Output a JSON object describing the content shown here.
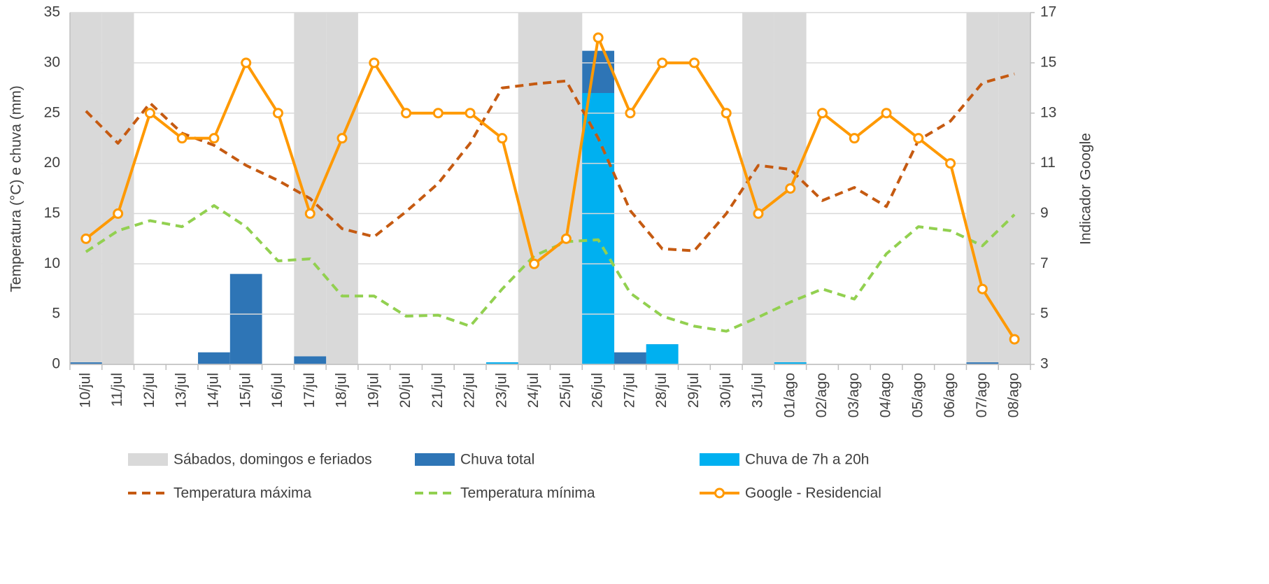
{
  "chart_data": {
    "type": "combo",
    "y_label": "Temperatura (°C) e chuva (mm)",
    "y2_label": "Indicador Google",
    "categories": [
      "10/jul",
      "11/jul",
      "12/jul",
      "13/jul",
      "14/jul",
      "15/jul",
      "16/jul",
      "17/jul",
      "18/jul",
      "19/jul",
      "20/jul",
      "21/jul",
      "22/jul",
      "23/jul",
      "24/jul",
      "25/jul",
      "26/jul",
      "27/jul",
      "28/jul",
      "29/jul",
      "30/jul",
      "31/jul",
      "01/ago",
      "02/ago",
      "03/ago",
      "04/ago",
      "05/ago",
      "06/ago",
      "07/ago",
      "08/ago"
    ],
    "ylim": [
      0,
      35
    ],
    "yticks": [
      0,
      5,
      10,
      15,
      20,
      25,
      30,
      35
    ],
    "y2lim": [
      3,
      17
    ],
    "y2ticks": [
      3,
      5,
      7,
      9,
      11,
      13,
      15,
      17
    ],
    "grid": true,
    "series": [
      {
        "name": "Sábados, domingos e feriados",
        "type": "bar",
        "color": "#d9d9d9",
        "values": [
          35,
          35,
          0,
          0,
          0,
          0,
          0,
          35,
          35,
          0,
          0,
          0,
          0,
          0,
          35,
          35,
          0,
          0,
          0,
          0,
          0,
          35,
          35,
          0,
          0,
          0,
          0,
          0,
          35,
          35
        ]
      },
      {
        "name": "Chuva total",
        "type": "bar",
        "color": "#2e75b6",
        "values": [
          0.2,
          0,
          0,
          0,
          1.2,
          9,
          0,
          0.8,
          0,
          0,
          0,
          0,
          0,
          0.2,
          0,
          0,
          31.2,
          1.2,
          2,
          0,
          0,
          0,
          0.2,
          0,
          0,
          0,
          0,
          0,
          0.2,
          0
        ]
      },
      {
        "name": "Chuva de 7h a 20h",
        "type": "bar",
        "color": "#00b0f0",
        "values": [
          0,
          0,
          0,
          0,
          0,
          0,
          0,
          0,
          0,
          0,
          0,
          0,
          0,
          0.2,
          0,
          0,
          27,
          0,
          2,
          0,
          0,
          0,
          0.2,
          0,
          0,
          0,
          0,
          0,
          0,
          0
        ]
      },
      {
        "name": "Temperatura máxima",
        "type": "line",
        "dashed": true,
        "color": "#c55a11",
        "values": [
          25.2,
          22,
          26,
          23,
          21.8,
          19.8,
          18.3,
          16.5,
          13.5,
          12.7,
          15.2,
          18,
          22,
          27.5,
          27.9,
          28.2,
          22.5,
          15.3,
          11.5,
          11.3,
          15,
          19.8,
          19.4,
          16.3,
          17.6,
          15.7,
          22.3,
          24.2,
          28,
          28.9
        ]
      },
      {
        "name": "Temperatura mínima",
        "type": "line",
        "dashed": true,
        "color": "#92d050",
        "values": [
          11.2,
          13.3,
          14.3,
          13.7,
          15.8,
          13.7,
          10.3,
          10.5,
          6.8,
          6.8,
          4.8,
          4.9,
          3.8,
          7.5,
          10.8,
          12.2,
          12.4,
          7.1,
          4.8,
          3.8,
          3.3,
          4.7,
          6.2,
          7.5,
          6.5,
          11,
          13.7,
          13.3,
          11.8,
          14.9
        ]
      },
      {
        "name": "Google - Residencial",
        "type": "line",
        "markers": true,
        "axis": "y2",
        "color": "#ff9900",
        "values": [
          8,
          9,
          13,
          12,
          12,
          15,
          13,
          9,
          12,
          15,
          13,
          13,
          13,
          12,
          7,
          8,
          16,
          13,
          15,
          15,
          13,
          9,
          10,
          13,
          12,
          13,
          12,
          11,
          6,
          4
        ]
      }
    ]
  }
}
